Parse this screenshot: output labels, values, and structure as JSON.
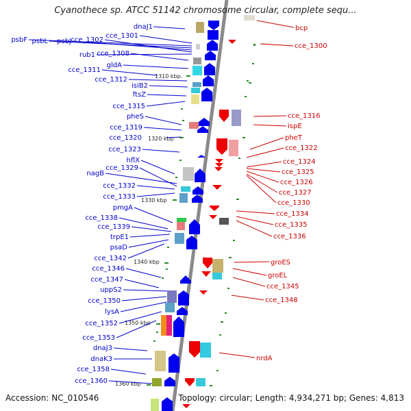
{
  "title": "Cyanothece sp. ATCC 51142 chromosome circular, complete sequ...",
  "footer": {
    "accession": "Accession: NC_010546",
    "stats": "Topology: circular; Length: 4,934,271 bp; Genes: 4,813"
  },
  "colors": {
    "minus_strand_label": "#0000cc",
    "plus_strand_label": "#cc0000",
    "minus_strand_arrow": "#0000ee",
    "plus_strand_arrow": "#ee0000",
    "backbone": "#888888",
    "tick": "#2a8a2a"
  },
  "scale_labels": [
    "1310 kbp.",
    "1320 kbp",
    "1330 kbp",
    "1340 kbp",
    "1350 kbp",
    "1360 kbp"
  ],
  "left_genes": [
    "dnaJ1",
    "psbF",
    "psbL",
    "psbJ",
    "cce_1302",
    "cce_1301",
    "rub1",
    "cce_1308",
    "gldA",
    "cce_1311",
    "cce_1312",
    "isiB2",
    "ftsZ",
    "cce_1315",
    "pheS",
    "cce_1319",
    "cce_1320",
    "cce_1323",
    "hflX",
    "nagB",
    "cce_1329",
    "cce_1332",
    "cce_1333",
    "pmgA",
    "cce_1338",
    "cce_1339",
    "trpE1",
    "psaD",
    "cce_1342",
    "cce_1346",
    "cce_1347",
    "uppS2",
    "cce_1350",
    "lysA",
    "cce_1352",
    "cce_1353",
    "dnaJ3",
    "dnaK3",
    "cce_1358",
    "cce_1360"
  ],
  "right_genes": [
    "bcp",
    "cce_1300",
    "cce_1316",
    "ispE",
    "pheT",
    "cce_1322",
    "cce_1324",
    "cce_1325",
    "cce_1326",
    "cce_1327",
    "cce_1330",
    "cce_1334",
    "cce_1335",
    "cce_1336",
    "groES",
    "groEL",
    "cce_1345",
    "cce_1348",
    "nrdA"
  ]
}
